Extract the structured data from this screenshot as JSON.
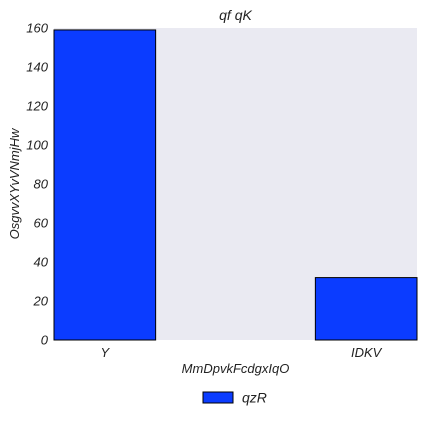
{
  "chart_data": {
    "type": "bar",
    "title": "qf qK",
    "xlabel": "MmDpvkFcdgxIqO",
    "ylabel": "OsgvvXYvVNmjHw",
    "categories": [
      "Y",
      "IDKV"
    ],
    "series": [
      {
        "name": "qzR",
        "values": [
          159,
          32
        ]
      }
    ],
    "ylim": [
      0,
      160
    ],
    "yticks": [
      0,
      20,
      40,
      60,
      80,
      100,
      120,
      140,
      160
    ],
    "grid": false,
    "legend": "bottom-center",
    "colors": {
      "bar": "#0b3cff",
      "bar_edge": "#000000",
      "plot_background": "#eaeaf2",
      "page_background": "#ffffff"
    }
  }
}
